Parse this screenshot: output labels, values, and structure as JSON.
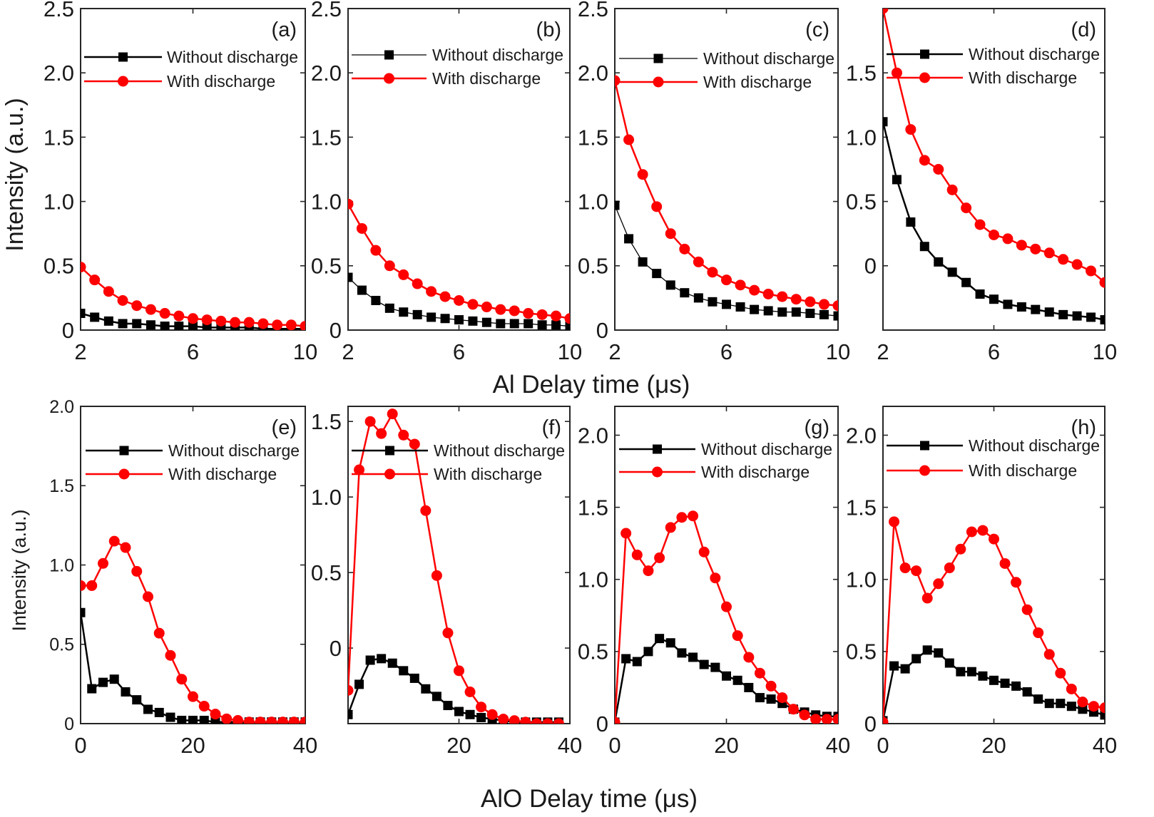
{
  "figure": {
    "top_ylabel": "Intensity (a.u.)",
    "top_xlabel": "Al Delay time (μs)",
    "bottom_ylabel": "Intensity (a.u.)",
    "bottom_xlabel": "AlO Delay time (μs)"
  },
  "chart_data": [
    {
      "panel": "(a)",
      "type": "line",
      "xlim": [
        2,
        10
      ],
      "ylim": [
        0,
        2.5
      ],
      "xticks": [
        2,
        6,
        10
      ],
      "yticks": [
        0,
        0.5,
        1.0,
        1.5,
        2.0,
        2.5
      ],
      "ytick_labels": [
        "0",
        "0.5",
        "1.0",
        "1.5",
        "2.0",
        "2.5"
      ],
      "x": [
        2,
        2.5,
        3,
        3.5,
        4,
        4.5,
        5,
        5.5,
        6,
        6.5,
        7,
        7.5,
        8,
        8.5,
        9,
        9.5,
        10
      ],
      "series": [
        {
          "name": "Without discharge",
          "color": "#000000",
          "marker": "square",
          "line_width": 2.5,
          "values": [
            0.13,
            0.1,
            0.07,
            0.05,
            0.05,
            0.04,
            0.03,
            0.03,
            0.03,
            0.02,
            0.02,
            0.02,
            0.02,
            0.01,
            0.01,
            0.01,
            0.01
          ]
        },
        {
          "name": "With discharge",
          "color": "#ff0000",
          "marker": "circle",
          "line_width": 2.5,
          "values": [
            0.49,
            0.39,
            0.3,
            0.23,
            0.19,
            0.16,
            0.13,
            0.11,
            0.09,
            0.08,
            0.07,
            0.06,
            0.06,
            0.05,
            0.04,
            0.04,
            0.03
          ]
        }
      ]
    },
    {
      "panel": "(b)",
      "type": "line",
      "xlim": [
        2,
        10
      ],
      "ylim": [
        0,
        2.5
      ],
      "xticks": [
        2,
        6,
        10
      ],
      "yticks": [
        0,
        0.5,
        1.0,
        1.5,
        2.0,
        2.5
      ],
      "ytick_labels": [
        "0",
        "0.5",
        "1.0",
        "1.5",
        "2.0",
        "2.5"
      ],
      "x": [
        2,
        2.5,
        3,
        3.5,
        4,
        4.5,
        5,
        5.5,
        6,
        6.5,
        7,
        7.5,
        8,
        8.5,
        9,
        9.5,
        10
      ],
      "series": [
        {
          "name": "Without discharge",
          "color": "#000000",
          "marker": "square",
          "line_width": 1.3,
          "values": [
            0.41,
            0.31,
            0.23,
            0.17,
            0.14,
            0.12,
            0.1,
            0.09,
            0.08,
            0.07,
            0.06,
            0.05,
            0.05,
            0.05,
            0.04,
            0.04,
            0.03
          ]
        },
        {
          "name": "With discharge",
          "color": "#ff0000",
          "marker": "circle",
          "line_width": 2.5,
          "values": [
            0.98,
            0.79,
            0.62,
            0.5,
            0.43,
            0.36,
            0.3,
            0.26,
            0.23,
            0.2,
            0.18,
            0.16,
            0.15,
            0.13,
            0.12,
            0.11,
            0.09
          ]
        }
      ]
    },
    {
      "panel": "(c)",
      "type": "line",
      "xlim": [
        2,
        10
      ],
      "ylim": [
        0,
        2.5
      ],
      "xticks": [
        2,
        6,
        10
      ],
      "yticks": [
        0,
        0.5,
        1.0,
        1.5,
        2.0,
        2.5
      ],
      "ytick_labels": [
        "0",
        "0.5",
        "1.0",
        "1.5",
        "2.0",
        "2.5"
      ],
      "x": [
        2,
        2.5,
        3,
        3.5,
        4,
        4.5,
        5,
        5.5,
        6,
        6.5,
        7,
        7.5,
        8,
        8.5,
        9,
        9.5,
        10
      ],
      "series": [
        {
          "name": "Without discharge",
          "color": "#000000",
          "marker": "square",
          "line_width": 1.3,
          "values": [
            0.97,
            0.71,
            0.53,
            0.44,
            0.35,
            0.29,
            0.25,
            0.22,
            0.2,
            0.18,
            0.16,
            0.15,
            0.14,
            0.14,
            0.13,
            0.12,
            0.11
          ]
        },
        {
          "name": "With discharge",
          "color": "#ff0000",
          "marker": "circle",
          "line_width": 2.5,
          "values": [
            1.94,
            1.48,
            1.21,
            0.96,
            0.75,
            0.63,
            0.53,
            0.45,
            0.39,
            0.35,
            0.31,
            0.28,
            0.26,
            0.24,
            0.22,
            0.2,
            0.19
          ]
        }
      ]
    },
    {
      "panel": "(d)",
      "type": "line",
      "xlim": [
        2,
        10
      ],
      "ylim": [
        -0.5,
        2.0
      ],
      "xticks": [
        2,
        6,
        10
      ],
      "yticks": [
        0,
        0.5,
        1.0,
        1.5
      ],
      "ytick_labels": [
        "0",
        "0.5",
        "1.0",
        "1.5"
      ],
      "x": [
        2,
        2.5,
        3,
        3.5,
        4,
        4.5,
        5,
        5.5,
        6,
        6.5,
        7,
        7.5,
        8,
        8.5,
        9,
        9.5,
        10
      ],
      "series": [
        {
          "name": "Without discharge",
          "color": "#000000",
          "marker": "square",
          "line_width": 2.5,
          "values": [
            1.12,
            0.67,
            0.34,
            0.15,
            0.03,
            -0.05,
            -0.13,
            -0.22,
            -0.26,
            -0.3,
            -0.32,
            -0.34,
            -0.36,
            -0.38,
            -0.39,
            -0.4,
            -0.42
          ]
        },
        {
          "name": "With discharge",
          "color": "#ff0000",
          "marker": "circle",
          "line_width": 2.5,
          "values": [
            2.0,
            1.5,
            1.06,
            0.82,
            0.75,
            0.59,
            0.45,
            0.32,
            0.24,
            0.21,
            0.16,
            0.13,
            0.1,
            0.05,
            0.01,
            -0.04,
            -0.13
          ]
        }
      ]
    },
    {
      "panel": "(e)",
      "type": "line",
      "xlim": [
        0,
        40
      ],
      "ylim": [
        0,
        2.0
      ],
      "xticks": [
        0,
        20,
        40
      ],
      "yticks": [
        0,
        0.5,
        1.0,
        1.5,
        2.0
      ],
      "ytick_labels": [
        "0",
        "0.5",
        "1.0",
        "1.5",
        "2.0"
      ],
      "x": [
        0,
        2,
        4,
        6,
        8,
        10,
        12,
        14,
        16,
        18,
        20,
        22,
        24,
        26,
        28,
        30,
        32,
        34,
        36,
        38,
        40
      ],
      "series": [
        {
          "name": "Without discharge",
          "color": "#000000",
          "marker": "square",
          "line_width": 2.5,
          "values": [
            0.7,
            0.22,
            0.26,
            0.28,
            0.2,
            0.15,
            0.09,
            0.07,
            0.04,
            0.02,
            0.02,
            0.02,
            0.01,
            0.01,
            0.01,
            0.01,
            0.01,
            0.01,
            0.01,
            0.01,
            0.01
          ]
        },
        {
          "name": "With discharge",
          "color": "#ff0000",
          "marker": "circle",
          "line_width": 2.5,
          "values": [
            0.87,
            0.87,
            1.01,
            1.15,
            1.11,
            0.96,
            0.8,
            0.57,
            0.43,
            0.28,
            0.17,
            0.11,
            0.06,
            0.03,
            0.02,
            0.01,
            0.01,
            0.01,
            0.01,
            0.01,
            0.01
          ]
        }
      ]
    },
    {
      "panel": "(f)",
      "type": "line",
      "xlim": [
        0,
        40
      ],
      "ylim": [
        -0.5,
        1.6
      ],
      "xticks": [
        20,
        40
      ],
      "yticks": [
        0,
        0.5,
        1.0,
        1.5
      ],
      "ytick_labels": [
        "0",
        "0.5",
        "1.0",
        "1.5"
      ],
      "x": [
        0,
        2,
        4,
        6,
        8,
        10,
        12,
        14,
        16,
        18,
        20,
        22,
        24,
        26,
        28,
        30,
        32,
        34,
        36,
        38
      ],
      "series": [
        {
          "name": "Without discharge",
          "color": "#000000",
          "marker": "square",
          "line_width": 2.5,
          "values": [
            -0.44,
            -0.24,
            -0.08,
            -0.07,
            -0.1,
            -0.15,
            -0.2,
            -0.27,
            -0.32,
            -0.38,
            -0.42,
            -0.44,
            -0.46,
            -0.47,
            -0.48,
            -0.49,
            -0.49,
            -0.49,
            -0.49,
            -0.49
          ]
        },
        {
          "name": "With discharge",
          "color": "#ff0000",
          "marker": "circle",
          "line_width": 2.5,
          "values": [
            -0.28,
            1.18,
            1.5,
            1.42,
            1.55,
            1.41,
            1.35,
            0.91,
            0.48,
            0.1,
            -0.15,
            -0.29,
            -0.39,
            -0.44,
            -0.47,
            -0.48,
            -0.49,
            -0.5,
            -0.5,
            -0.5
          ]
        }
      ]
    },
    {
      "panel": "(g)",
      "type": "line",
      "xlim": [
        0,
        40
      ],
      "ylim": [
        0,
        2.2
      ],
      "xticks": [
        0,
        20,
        40
      ],
      "yticks": [
        0,
        0.5,
        1.0,
        1.5,
        2.0
      ],
      "ytick_labels": [
        "0",
        "0.5",
        "1.0",
        "1.5",
        "2.0"
      ],
      "x": [
        0,
        2,
        4,
        6,
        8,
        10,
        12,
        14,
        16,
        18,
        20,
        22,
        24,
        26,
        28,
        30,
        32,
        34,
        36,
        38,
        40
      ],
      "series": [
        {
          "name": "Without discharge",
          "color": "#000000",
          "marker": "square",
          "line_width": 2.5,
          "values": [
            0.01,
            0.45,
            0.43,
            0.5,
            0.59,
            0.56,
            0.49,
            0.46,
            0.41,
            0.39,
            0.33,
            0.3,
            0.25,
            0.18,
            0.17,
            0.14,
            0.1,
            0.08,
            0.06,
            0.05,
            0.05
          ]
        },
        {
          "name": "With discharge",
          "color": "#ff0000",
          "marker": "circle",
          "line_width": 2.5,
          "values": [
            0.01,
            1.32,
            1.17,
            1.06,
            1.15,
            1.36,
            1.43,
            1.44,
            1.19,
            1.01,
            0.81,
            0.61,
            0.46,
            0.35,
            0.26,
            0.18,
            0.1,
            0.06,
            0.03,
            0.03,
            0.03
          ]
        }
      ]
    },
    {
      "panel": "(h)",
      "type": "line",
      "xlim": [
        0,
        40
      ],
      "ylim": [
        0,
        2.2
      ],
      "xticks": [
        0,
        20,
        40
      ],
      "yticks": [
        0,
        0.5,
        1.0,
        1.5,
        2.0
      ],
      "ytick_labels": [
        "0",
        "0.5",
        "1.0",
        "1.5",
        "2.0"
      ],
      "x": [
        0,
        2,
        4,
        6,
        8,
        10,
        12,
        14,
        16,
        18,
        20,
        22,
        24,
        26,
        28,
        30,
        32,
        34,
        36,
        38,
        40
      ],
      "series": [
        {
          "name": "Without discharge",
          "color": "#000000",
          "marker": "square",
          "line_width": 2.5,
          "values": [
            0.02,
            0.4,
            0.38,
            0.45,
            0.51,
            0.49,
            0.42,
            0.36,
            0.36,
            0.33,
            0.3,
            0.28,
            0.26,
            0.22,
            0.17,
            0.14,
            0.14,
            0.12,
            0.1,
            0.08,
            0.06
          ]
        },
        {
          "name": "With discharge",
          "color": "#ff0000",
          "marker": "circle",
          "line_width": 2.5,
          "values": [
            0.01,
            1.4,
            1.08,
            1.06,
            0.87,
            0.97,
            1.08,
            1.21,
            1.33,
            1.34,
            1.28,
            1.11,
            0.98,
            0.79,
            0.63,
            0.48,
            0.35,
            0.24,
            0.15,
            0.12,
            0.11
          ]
        }
      ]
    }
  ]
}
